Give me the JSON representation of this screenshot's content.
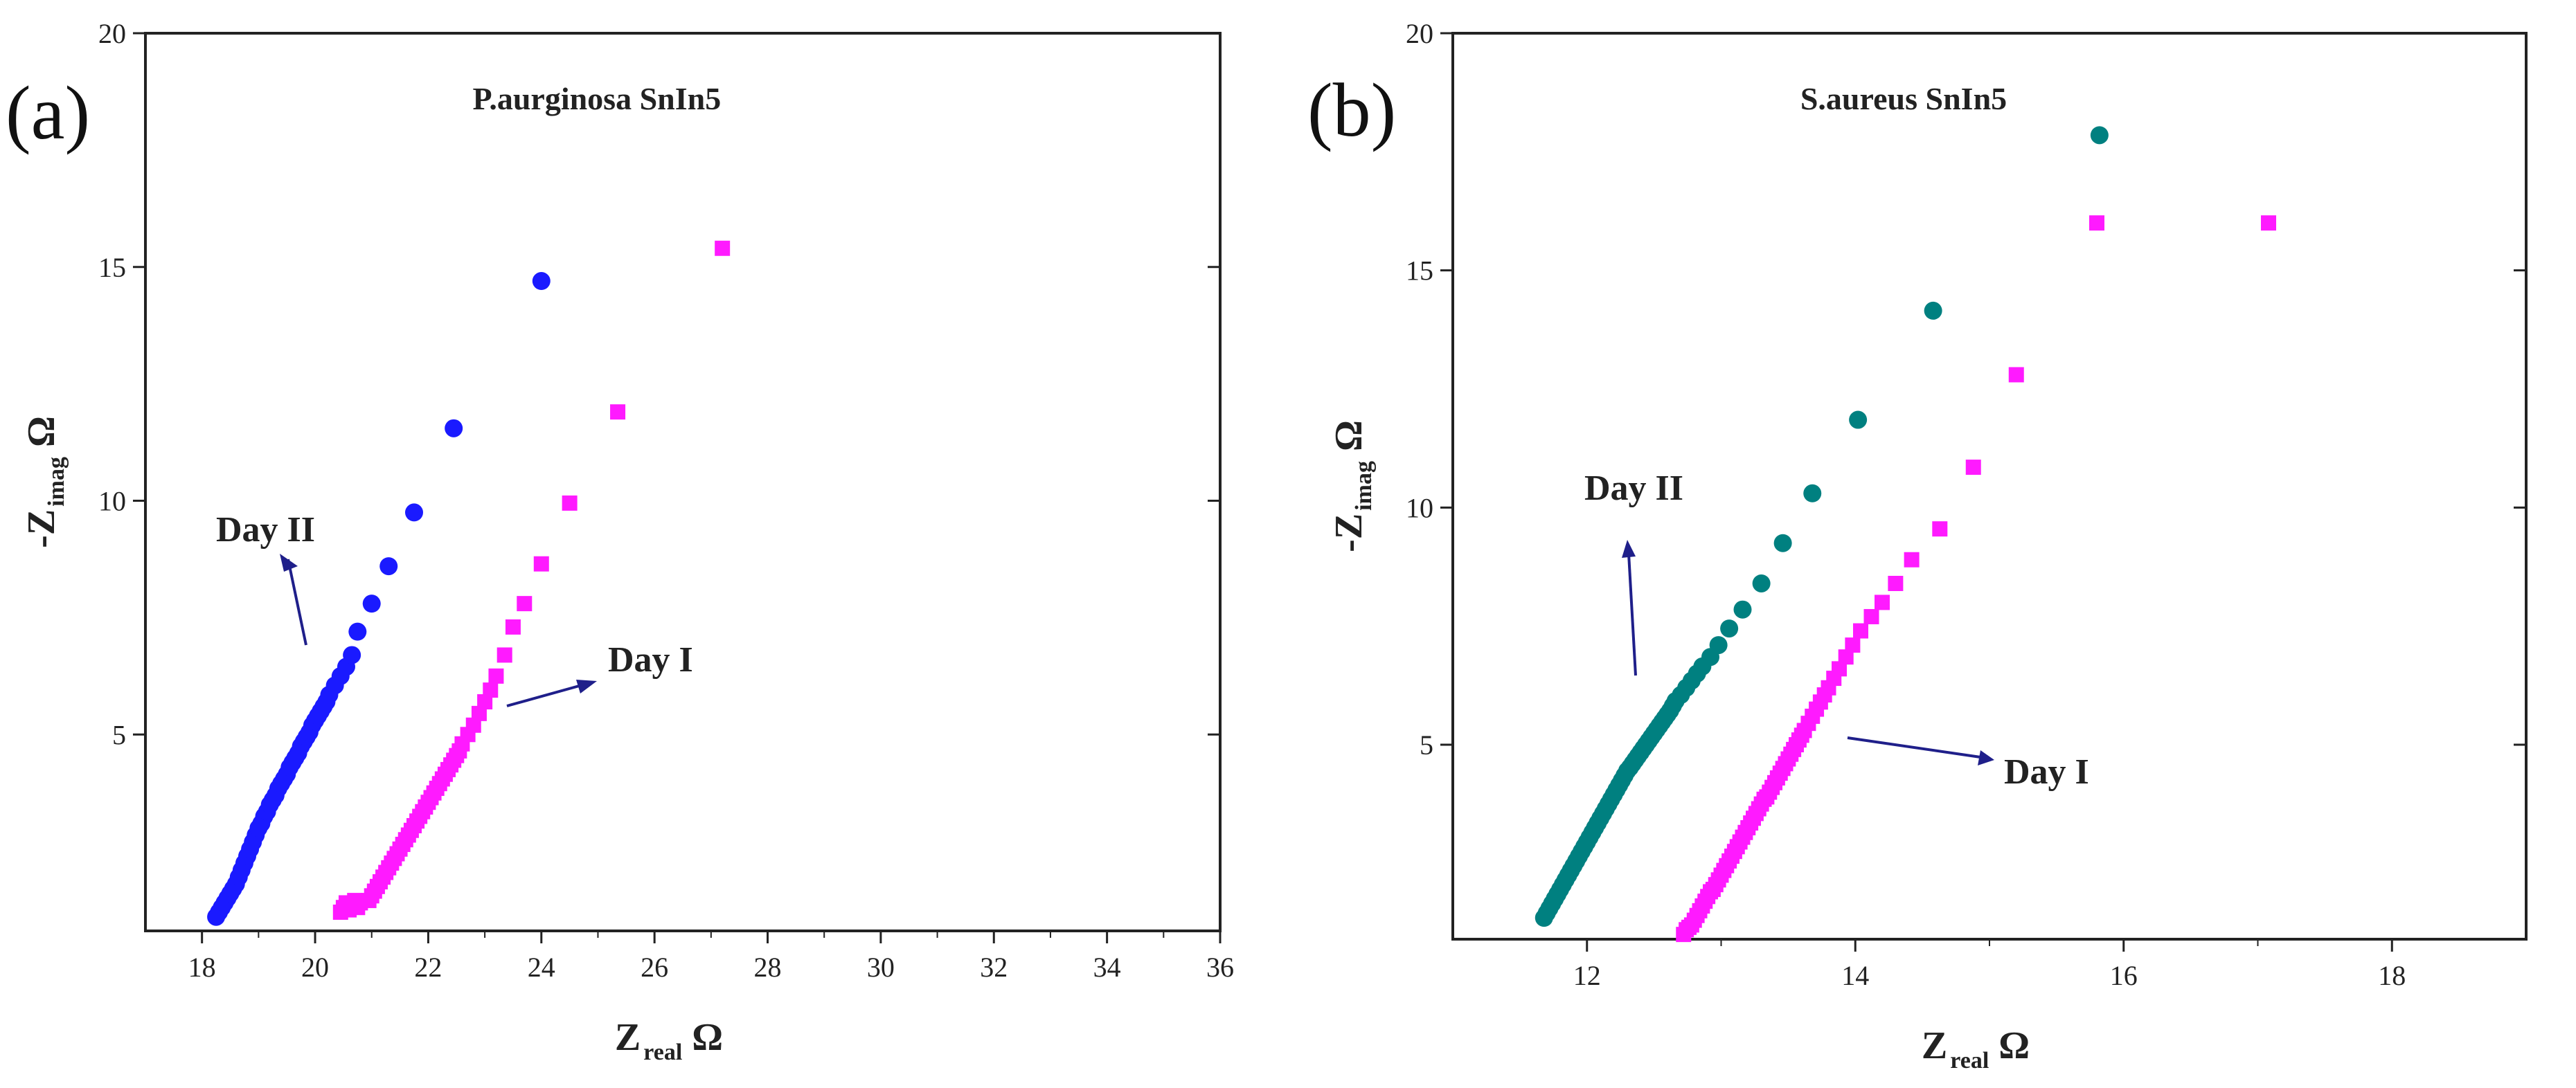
{
  "figure": {
    "panel_labels": [
      "(a)",
      "(b)"
    ]
  },
  "chart_data": [
    {
      "type": "scatter",
      "panel": "(a)",
      "title": "P.aurginosa SnIn5",
      "xlabel_main": "Z",
      "xlabel_sub": "real",
      "xlabel_unit": "Ω",
      "ylabel_main": "-Z",
      "ylabel_sub": "imag",
      "ylabel_unit": "Ω",
      "xlim": [
        17,
        36
      ],
      "ylim": [
        0.8,
        20
      ],
      "xticks": [
        18,
        20,
        22,
        24,
        26,
        28,
        30,
        32,
        34,
        36
      ],
      "yticks": [
        5,
        10,
        15,
        20
      ],
      "grid": false,
      "series": [
        {
          "name": "Day II",
          "marker": "circle",
          "color": "#1a1aff",
          "x": [
            18.25,
            18.3,
            18.35,
            18.4,
            18.45,
            18.5,
            18.55,
            18.6,
            18.65,
            18.7,
            18.75,
            18.8,
            18.85,
            18.9,
            18.95,
            19.0,
            19.05,
            19.1,
            19.15,
            19.2,
            19.25,
            19.3,
            19.35,
            19.4,
            19.45,
            19.5,
            19.55,
            19.6,
            19.65,
            19.7,
            19.75,
            19.8,
            19.85,
            19.9,
            19.95,
            20.0,
            20.05,
            20.1,
            20.15,
            20.2,
            20.25,
            20.35,
            20.45,
            20.55,
            20.65,
            20.75,
            21.0,
            21.3,
            21.75,
            22.45,
            24.0
          ],
          "y": [
            1.1,
            1.2,
            1.3,
            1.4,
            1.5,
            1.6,
            1.7,
            1.8,
            1.95,
            2.1,
            2.25,
            2.4,
            2.55,
            2.7,
            2.85,
            3.0,
            3.1,
            3.25,
            3.35,
            3.5,
            3.6,
            3.7,
            3.85,
            3.95,
            4.05,
            4.15,
            4.3,
            4.4,
            4.5,
            4.6,
            4.75,
            4.85,
            4.95,
            5.05,
            5.2,
            5.3,
            5.4,
            5.5,
            5.6,
            5.7,
            5.85,
            6.05,
            6.25,
            6.45,
            6.7,
            7.2,
            7.8,
            8.6,
            9.75,
            11.55,
            14.7
          ]
        },
        {
          "name": "Day I",
          "marker": "square",
          "color": "#ff1aff",
          "x": [
            20.45,
            20.5,
            20.55,
            20.6,
            20.65,
            20.7,
            20.75,
            20.8,
            20.95,
            21.0,
            21.05,
            21.1,
            21.15,
            21.2,
            21.25,
            21.3,
            21.35,
            21.4,
            21.45,
            21.5,
            21.55,
            21.6,
            21.65,
            21.7,
            21.75,
            21.8,
            21.85,
            21.9,
            21.95,
            22.0,
            22.05,
            22.1,
            22.15,
            22.2,
            22.25,
            22.3,
            22.35,
            22.4,
            22.45,
            22.5,
            22.55,
            22.6,
            22.7,
            22.8,
            22.9,
            23.0,
            23.1,
            23.2,
            23.35,
            23.5,
            23.7,
            24.0,
            24.5,
            25.35,
            27.2
          ],
          "y": [
            1.2,
            1.3,
            1.4,
            1.25,
            1.35,
            1.45,
            1.3,
            1.4,
            1.45,
            1.55,
            1.65,
            1.75,
            1.85,
            1.95,
            2.05,
            2.15,
            2.25,
            2.35,
            2.45,
            2.55,
            2.65,
            2.75,
            2.85,
            2.95,
            3.05,
            3.15,
            3.25,
            3.35,
            3.45,
            3.55,
            3.65,
            3.75,
            3.85,
            3.95,
            4.05,
            4.15,
            4.25,
            4.35,
            4.45,
            4.55,
            4.65,
            4.8,
            5.0,
            5.2,
            5.45,
            5.7,
            5.95,
            6.25,
            6.7,
            7.3,
            7.8,
            8.65,
            9.95,
            11.9,
            15.4
          ]
        }
      ],
      "annotations": [
        {
          "text": "Day II",
          "series": "Day II"
        },
        {
          "text": "Day I",
          "series": "Day I"
        }
      ]
    },
    {
      "type": "scatter",
      "panel": "(b)",
      "title": "S.aureus SnIn5",
      "xlabel_main": "Z",
      "xlabel_sub": "real",
      "xlabel_unit": "Ω",
      "ylabel_main": "-Z",
      "ylabel_sub": "imag",
      "ylabel_unit": "Ω",
      "xlim": [
        11,
        19
      ],
      "ylim": [
        0.9,
        20
      ],
      "xticks": [
        12,
        14,
        16,
        18
      ],
      "yticks": [
        5,
        10,
        15,
        20
      ],
      "grid": false,
      "series": [
        {
          "name": "Day II",
          "marker": "circle",
          "color": "#008080",
          "x": [
            11.68,
            11.7,
            11.72,
            11.74,
            11.76,
            11.78,
            11.8,
            11.82,
            11.84,
            11.86,
            11.88,
            11.9,
            11.92,
            11.94,
            11.96,
            11.98,
            12.0,
            12.02,
            12.04,
            12.06,
            12.08,
            12.1,
            12.12,
            12.14,
            12.16,
            12.18,
            12.2,
            12.22,
            12.24,
            12.26,
            12.28,
            12.3,
            12.32,
            12.34,
            12.36,
            12.38,
            12.4,
            12.42,
            12.44,
            12.46,
            12.48,
            12.5,
            12.52,
            12.54,
            12.56,
            12.58,
            12.6,
            12.62,
            12.64,
            12.66,
            12.7,
            12.74,
            12.78,
            12.82,
            12.86,
            12.92,
            12.98,
            13.06,
            13.16,
            13.3,
            13.46,
            13.68,
            14.02,
            14.58,
            15.82
          ],
          "y": [
            1.35,
            1.45,
            1.55,
            1.65,
            1.75,
            1.85,
            1.95,
            2.05,
            2.15,
            2.25,
            2.35,
            2.45,
            2.55,
            2.65,
            2.75,
            2.85,
            2.95,
            3.05,
            3.15,
            3.25,
            3.35,
            3.45,
            3.55,
            3.65,
            3.75,
            3.85,
            3.95,
            4.05,
            4.15,
            4.25,
            4.35,
            4.45,
            4.52,
            4.6,
            4.68,
            4.76,
            4.84,
            4.92,
            5.0,
            5.08,
            5.16,
            5.24,
            5.32,
            5.4,
            5.48,
            5.56,
            5.64,
            5.72,
            5.82,
            5.92,
            6.05,
            6.2,
            6.35,
            6.5,
            6.65,
            6.85,
            7.1,
            7.45,
            7.85,
            8.4,
            9.25,
            10.3,
            11.85,
            14.15,
            17.85
          ]
        },
        {
          "name": "Day I",
          "marker": "square",
          "color": "#ff1aff",
          "x": [
            12.72,
            12.74,
            12.76,
            12.78,
            12.8,
            12.82,
            12.84,
            12.86,
            12.88,
            12.9,
            12.92,
            12.94,
            12.96,
            12.98,
            13.0,
            13.02,
            13.04,
            13.06,
            13.08,
            13.1,
            13.12,
            13.14,
            13.16,
            13.18,
            13.2,
            13.22,
            13.24,
            13.26,
            13.28,
            13.3,
            13.32,
            13.34,
            13.36,
            13.38,
            13.4,
            13.42,
            13.44,
            13.46,
            13.48,
            13.5,
            13.52,
            13.54,
            13.56,
            13.58,
            13.6,
            13.62,
            13.65,
            13.68,
            13.71,
            13.74,
            13.77,
            13.8,
            13.84,
            13.88,
            13.93,
            13.98,
            14.04,
            14.12,
            14.2,
            14.3,
            14.42,
            14.63,
            14.88,
            15.2,
            15.8,
            17.08
          ],
          "y": [
            1.0,
            1.1,
            1.15,
            1.2,
            1.3,
            1.4,
            1.5,
            1.6,
            1.7,
            1.8,
            1.9,
            1.95,
            2.05,
            2.15,
            2.25,
            2.35,
            2.45,
            2.55,
            2.65,
            2.75,
            2.85,
            2.95,
            3.05,
            3.15,
            3.25,
            3.35,
            3.45,
            3.55,
            3.65,
            3.75,
            3.85,
            3.9,
            4.0,
            4.1,
            4.2,
            4.3,
            4.4,
            4.5,
            4.6,
            4.7,
            4.8,
            4.9,
            5.0,
            5.1,
            5.2,
            5.3,
            5.45,
            5.6,
            5.75,
            5.9,
            6.05,
            6.2,
            6.4,
            6.6,
            6.85,
            7.1,
            7.4,
            7.7,
            8.0,
            8.4,
            8.9,
            9.55,
            10.85,
            12.8,
            16.0,
            16.0
          ]
        }
      ],
      "annotations": [
        {
          "text": "Day II",
          "series": "Day II"
        },
        {
          "text": "Day I",
          "series": "Day I"
        }
      ]
    }
  ]
}
